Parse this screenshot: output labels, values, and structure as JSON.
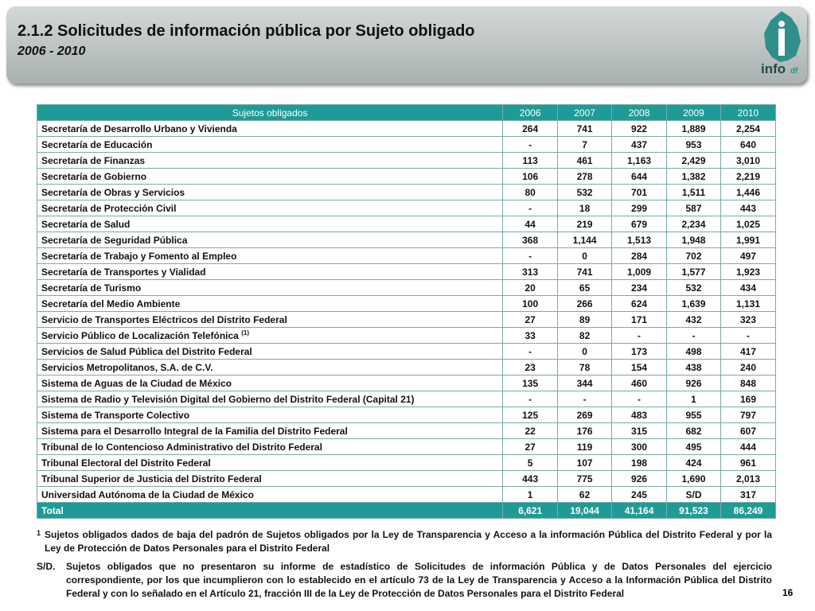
{
  "header": {
    "title": "2.1.2 Solicitudes de información pública por Sujeto obligado",
    "subtitle": "2006 - 2010",
    "logo": "info",
    "logo_suffix": "df"
  },
  "table": {
    "columns": [
      "Sujetos obligados",
      "2006",
      "2007",
      "2008",
      "2009",
      "2010"
    ],
    "rows": [
      {
        "cells": [
          "Secretaría de Desarrollo Urbano y Vivienda",
          "264",
          "741",
          "922",
          "1,889",
          "2,254"
        ]
      },
      {
        "cells": [
          "Secretaría de Educación",
          "-",
          "7",
          "437",
          "953",
          "640"
        ]
      },
      {
        "cells": [
          "Secretaría de Finanzas",
          "113",
          "461",
          "1,163",
          "2,429",
          "3,010"
        ]
      },
      {
        "cells": [
          "Secretaría de Gobierno",
          "106",
          "278",
          "644",
          "1,382",
          "2,219"
        ]
      },
      {
        "cells": [
          "Secretaría de Obras y Servicios",
          "80",
          "532",
          "701",
          "1,511",
          "1,446"
        ]
      },
      {
        "cells": [
          "Secretaría de Protección Civil",
          "-",
          "18",
          "299",
          "587",
          "443"
        ]
      },
      {
        "cells": [
          "Secretaría de Salud",
          "44",
          "219",
          "679",
          "2,234",
          "1,025"
        ]
      },
      {
        "cells": [
          "Secretaría de Seguridad Pública",
          "368",
          "1,144",
          "1,513",
          "1,948",
          "1,991"
        ]
      },
      {
        "cells": [
          "Secretaría de Trabajo y Fomento al Empleo",
          "-",
          "0",
          "284",
          "702",
          "497"
        ]
      },
      {
        "cells": [
          "Secretaría de Transportes y Vialidad",
          "313",
          "741",
          "1,009",
          "1,577",
          "1,923"
        ]
      },
      {
        "cells": [
          "Secretaría de Turismo",
          "20",
          "65",
          "234",
          "532",
          "434"
        ]
      },
      {
        "cells": [
          "Secretaría del Medio Ambiente",
          "100",
          "266",
          "624",
          "1,639",
          "1,131"
        ]
      },
      {
        "cells": [
          "Servicio de Transportes Eléctricos del Distrito Federal",
          "27",
          "89",
          "171",
          "432",
          "323"
        ]
      },
      {
        "cells": [
          "Servicio Público de Localización Telefónica",
          "33",
          "82",
          "-",
          "-",
          "-"
        ],
        "note": "(1)"
      },
      {
        "cells": [
          "Servicios de Salud Pública del Distrito Federal",
          "-",
          "0",
          "173",
          "498",
          "417"
        ]
      },
      {
        "cells": [
          "Servicios Metropolitanos, S.A. de C.V.",
          "23",
          "78",
          "154",
          "438",
          "240"
        ]
      },
      {
        "cells": [
          "Sistema de Aguas de la Ciudad de México",
          "135",
          "344",
          "460",
          "926",
          "848"
        ]
      },
      {
        "cells": [
          "Sistema de Radio y Televisión Digital del Gobierno del Distrito Federal (Capital 21)",
          "-",
          "-",
          "-",
          "1",
          "169"
        ]
      },
      {
        "cells": [
          "Sistema de Transporte Colectivo",
          "125",
          "269",
          "483",
          "955",
          "797"
        ]
      },
      {
        "cells": [
          "Sistema para el Desarrollo Integral de la Familia del Distrito Federal",
          "22",
          "176",
          "315",
          "682",
          "607"
        ]
      },
      {
        "cells": [
          "Tribunal de lo Contencioso Administrativo del Distrito Federal",
          "27",
          "119",
          "300",
          "495",
          "444"
        ]
      },
      {
        "cells": [
          "Tribunal Electoral del Distrito Federal",
          "5",
          "107",
          "198",
          "424",
          "961"
        ]
      },
      {
        "cells": [
          "Tribunal Superior de Justicia del Distrito Federal",
          "443",
          "775",
          "926",
          "1,690",
          "2,013"
        ]
      },
      {
        "cells": [
          "Universidad Autónoma de la Ciudad de México",
          "1",
          "62",
          "245",
          "S/D",
          "317"
        ]
      }
    ],
    "total": [
      "Total",
      "6,621",
      "19,044",
      "41,164",
      "91,523",
      "86,249"
    ]
  },
  "footnotes": [
    {
      "marker": "1",
      "text": "Sujetos obligados dados de baja del padrón de Sujetos obligados por la Ley de Transparencia y Acceso a la información Pública del Distrito Federal y por la Ley de Protección de Datos Personales para el Distrito Federal"
    },
    {
      "marker": "S/D.",
      "text": "Sujetos obligados que no presentaron su informe de estadístico de Solicitudes de información Pública y de Datos Personales del ejercicio correspondiente, por los que incumplieron con lo establecido en el artículo 73 de la Ley de Transparencia y Acceso a la Información Pública del Distrito Federal y con lo señalado en el Artículo 21, fracción III de la Ley de Protección de Datos Personales para el Distrito Federal"
    }
  ],
  "page_number": "16"
}
